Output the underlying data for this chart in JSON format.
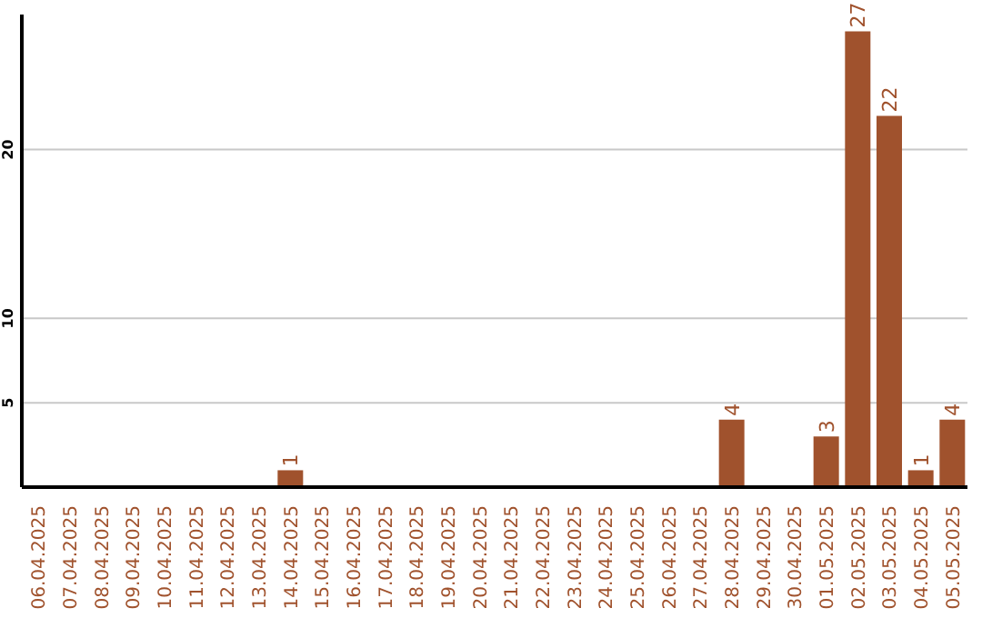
{
  "chart_data": {
    "type": "bar",
    "categories": [
      "06.04.2025",
      "07.04.2025",
      "08.04.2025",
      "09.04.2025",
      "10.04.2025",
      "11.04.2025",
      "12.04.2025",
      "13.04.2025",
      "14.04.2025",
      "15.04.2025",
      "16.04.2025",
      "17.04.2025",
      "18.04.2025",
      "19.04.2025",
      "20.04.2025",
      "21.04.2025",
      "22.04.2025",
      "23.04.2025",
      "24.04.2025",
      "25.04.2025",
      "26.04.2025",
      "27.04.2025",
      "28.04.2025",
      "29.04.2025",
      "30.04.2025",
      "01.05.2025",
      "02.05.2025",
      "03.05.2025",
      "04.05.2025",
      "05.05.2025"
    ],
    "values": [
      0,
      0,
      0,
      0,
      0,
      0,
      0,
      0,
      1,
      0,
      0,
      0,
      0,
      0,
      0,
      0,
      0,
      0,
      0,
      0,
      0,
      0,
      4,
      0,
      0,
      3,
      27,
      22,
      1,
      4
    ],
    "value_labels": [
      null,
      null,
      null,
      null,
      null,
      null,
      null,
      null,
      "1",
      null,
      null,
      null,
      null,
      null,
      null,
      null,
      null,
      null,
      null,
      null,
      null,
      null,
      "4",
      null,
      null,
      "3",
      "27",
      "22",
      "1",
      "4"
    ],
    "color": "#a0522d",
    "ylim": [
      0,
      28
    ],
    "yticks": [
      5,
      10,
      20
    ],
    "grid": "y"
  }
}
